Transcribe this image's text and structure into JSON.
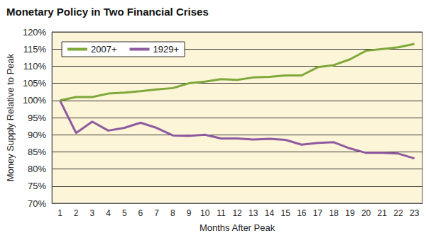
{
  "chart_data": {
    "type": "line",
    "title": "Monetary Policy in Two Financial Crises",
    "x_label": "Months After Peak",
    "y_label": "Money Supply Relative to Peak",
    "categories": [
      "1",
      "2",
      "3",
      "4",
      "5",
      "6",
      "7",
      "8",
      "9",
      "10",
      "11",
      "12",
      "13",
      "14",
      "15",
      "16",
      "17",
      "18",
      "19",
      "20",
      "21",
      "22",
      "23"
    ],
    "series": [
      {
        "name": "2007+",
        "color": "#7ea83a",
        "values": [
          100,
          101,
          101,
          102,
          102.3,
          102.7,
          103.2,
          103.6,
          105,
          105.5,
          106.2,
          106,
          106.7,
          106.9,
          107.3,
          107.3,
          109.7,
          110.3,
          112,
          114.5,
          115,
          115.5,
          116.5
        ]
      },
      {
        "name": "1929+",
        "color": "#8e5aa0",
        "values": [
          100,
          90.5,
          93.8,
          91.2,
          92,
          93.5,
          92,
          89.8,
          89.7,
          90,
          88.9,
          88.9,
          88.6,
          88.8,
          88.5,
          87.1,
          87.6,
          87.8,
          86,
          84.7,
          84.7,
          84.5,
          83.1
        ]
      }
    ],
    "ylim": [
      70,
      120
    ],
    "yticks": [
      {
        "value": 70,
        "label": "70%"
      },
      {
        "value": 75,
        "label": "75%"
      },
      {
        "value": 80,
        "label": "80%"
      },
      {
        "value": 85,
        "label": "85%"
      },
      {
        "value": 90,
        "label": "90%"
      },
      {
        "value": 95,
        "label": "95%"
      },
      {
        "value": 100,
        "label": "100%"
      },
      {
        "value": 105,
        "label": "105%"
      },
      {
        "value": 110,
        "label": "110%"
      },
      {
        "value": 115,
        "label": "115%"
      },
      {
        "value": 120,
        "label": "120%"
      }
    ],
    "grid": true,
    "legend": "upper left"
  }
}
